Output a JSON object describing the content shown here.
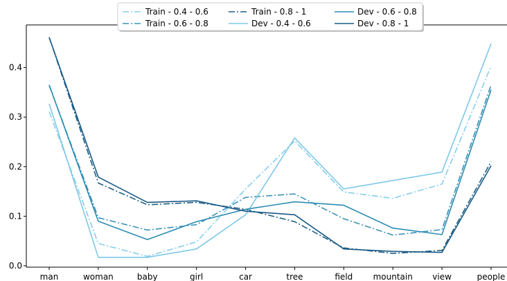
{
  "chart_data": {
    "type": "line",
    "categories": [
      "man",
      "woman",
      "baby",
      "girl",
      "car",
      "tree",
      "field",
      "mountain",
      "view",
      "people"
    ],
    "ylim": [
      0,
      0.48
    ],
    "yticks": [
      0.0,
      0.1,
      0.2,
      0.3,
      0.4
    ],
    "ytick_labels": [
      "0.0",
      "0.1",
      "0.2",
      "0.3",
      "0.4"
    ],
    "legend_position": "top-center",
    "legend_columns": 3,
    "grid": false,
    "series": [
      {
        "name": "Train - 0.4 - 0.6",
        "color": "#87ceeb",
        "dash": "dashdot",
        "values": [
          0.311,
          0.045,
          0.019,
          0.048,
          0.155,
          0.252,
          0.149,
          0.136,
          0.165,
          0.403
        ]
      },
      {
        "name": "Train - 0.6 - 0.8",
        "color": "#3a92b8",
        "dash": "dashdot",
        "values": [
          0.364,
          0.097,
          0.072,
          0.083,
          0.138,
          0.145,
          0.095,
          0.062,
          0.073,
          0.365
        ]
      },
      {
        "name": "Train - 0.8 - 1",
        "color": "#1e5f85",
        "dash": "dashdot",
        "values": [
          0.461,
          0.167,
          0.123,
          0.128,
          0.114,
          0.089,
          0.036,
          0.025,
          0.031,
          0.21
        ]
      },
      {
        "name": "Dev - 0.4 - 0.6",
        "color": "#7ec8e6",
        "dash": "solid",
        "values": [
          0.327,
          0.017,
          0.017,
          0.034,
          0.103,
          0.258,
          0.155,
          0.172,
          0.189,
          0.448
        ]
      },
      {
        "name": "Dev - 0.6 - 0.8",
        "color": "#2b8cb3",
        "dash": "solid",
        "values": [
          0.365,
          0.09,
          0.053,
          0.089,
          0.114,
          0.129,
          0.122,
          0.076,
          0.063,
          0.355
        ]
      },
      {
        "name": "Dev - 0.8 - 1",
        "color": "#195a86",
        "dash": "solid",
        "values": [
          0.461,
          0.179,
          0.128,
          0.131,
          0.11,
          0.103,
          0.034,
          0.029,
          0.027,
          0.202
        ]
      }
    ]
  }
}
